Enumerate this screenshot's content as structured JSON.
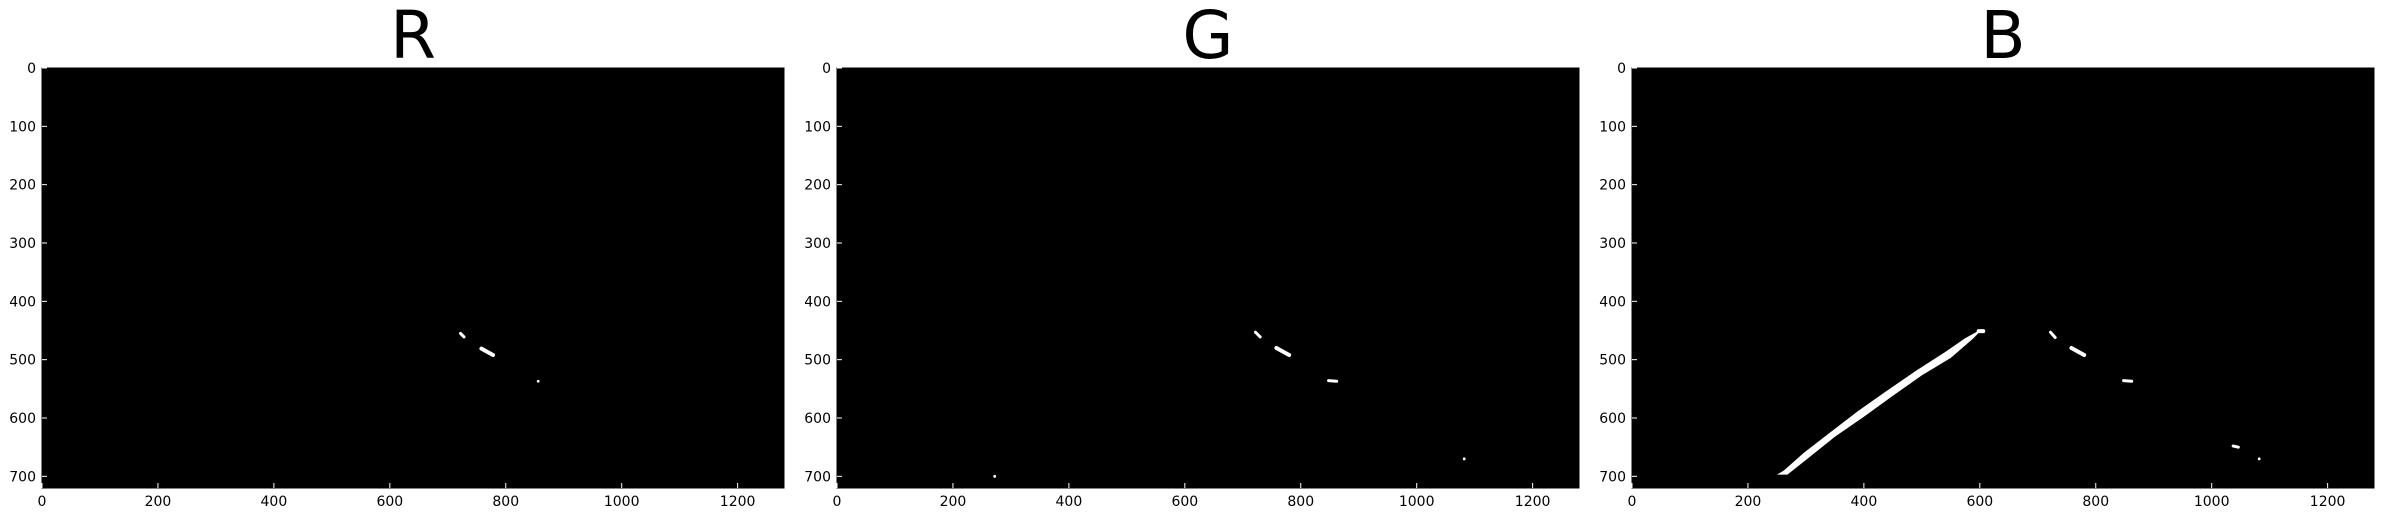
{
  "chart_data": [
    {
      "type": "heatmap",
      "title": "R",
      "xlabel": "",
      "ylabel": "",
      "xlim": [
        0,
        1280
      ],
      "ylim": [
        720,
        0
      ],
      "xticks": [
        0,
        200,
        400,
        600,
        800,
        1000,
        1200
      ],
      "yticks": [
        0,
        100,
        200,
        300,
        400,
        500,
        600,
        700
      ],
      "background": "#000000",
      "mark_color": "#ffffff",
      "grid": false,
      "legend": "none",
      "segments": [
        {
          "points": [
            [
              722,
              455
            ],
            [
              728,
              461
            ]
          ],
          "width": 3
        },
        {
          "points": [
            [
              758,
              481
            ],
            [
              778,
              492
            ]
          ],
          "width": 4
        }
      ],
      "specks": [
        [
          856,
          537
        ]
      ]
    },
    {
      "type": "heatmap",
      "title": "G",
      "xlabel": "",
      "ylabel": "",
      "xlim": [
        0,
        1280
      ],
      "ylim": [
        720,
        0
      ],
      "xticks": [
        0,
        200,
        400,
        600,
        800,
        1000,
        1200
      ],
      "yticks": [
        0,
        100,
        200,
        300,
        400,
        500,
        600,
        700
      ],
      "background": "#000000",
      "mark_color": "#ffffff",
      "grid": false,
      "legend": "none",
      "segments": [
        {
          "points": [
            [
              722,
              453
            ],
            [
              730,
              461
            ]
          ],
          "width": 3
        },
        {
          "points": [
            [
              758,
              480
            ],
            [
              780,
              492
            ]
          ],
          "width": 4
        },
        {
          "points": [
            [
              848,
              536
            ],
            [
              862,
              537
            ]
          ],
          "width": 3
        }
      ],
      "specks": [
        [
          1082,
          670
        ],
        [
          272,
          700
        ]
      ]
    },
    {
      "type": "heatmap",
      "title": "B",
      "xlabel": "",
      "ylabel": "",
      "xlim": [
        0,
        1280
      ],
      "ylim": [
        720,
        0
      ],
      "xticks": [
        0,
        200,
        400,
        600,
        800,
        1000,
        1200
      ],
      "yticks": [
        0,
        100,
        200,
        300,
        400,
        500,
        600,
        700
      ],
      "background": "#000000",
      "mark_color": "#ffffff",
      "grid": false,
      "legend": "none",
      "polygons": [
        [
          [
            250,
            697
          ],
          [
            268,
            697
          ],
          [
            300,
            672
          ],
          [
            350,
            632
          ],
          [
            400,
            598
          ],
          [
            450,
            562
          ],
          [
            500,
            527
          ],
          [
            550,
            497
          ],
          [
            588,
            464
          ],
          [
            600,
            452
          ],
          [
            595,
            452
          ],
          [
            575,
            463
          ],
          [
            540,
            487
          ],
          [
            490,
            519
          ],
          [
            440,
            553
          ],
          [
            390,
            588
          ],
          [
            340,
            626
          ],
          [
            296,
            660
          ],
          [
            262,
            690
          ]
        ]
      ],
      "segments": [
        {
          "points": [
            [
              598,
              451
            ],
            [
              606,
              451
            ]
          ],
          "width": 4
        },
        {
          "points": [
            [
              722,
              453
            ],
            [
              730,
              462
            ]
          ],
          "width": 3
        },
        {
          "points": [
            [
              758,
              480
            ],
            [
              780,
              492
            ]
          ],
          "width": 4
        },
        {
          "points": [
            [
              848,
              536
            ],
            [
              862,
              537
            ]
          ],
          "width": 3
        },
        {
          "points": [
            [
              1037,
              648
            ],
            [
              1046,
              650
            ]
          ],
          "width": 3
        }
      ],
      "specks": [
        [
          1082,
          670
        ]
      ]
    }
  ]
}
